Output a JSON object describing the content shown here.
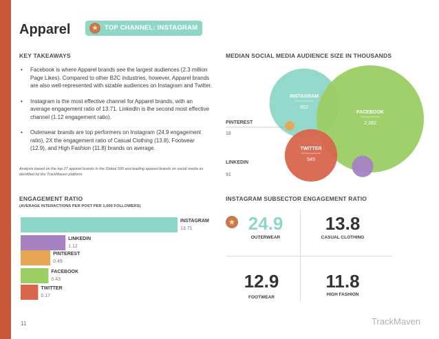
{
  "page": {
    "title": "Apparel",
    "badge": "TOP CHANNEL: INSTAGRAM",
    "page_number": "11",
    "brand": "TrackMaven"
  },
  "colors": {
    "sidebar": "#c8573a",
    "instagram": "#8ed6c8",
    "facebook": "#9bcd63",
    "twitter": "#d8654c",
    "pinterest": "#e8a553",
    "linkedin": "#a782c3"
  },
  "key_takeaways": {
    "heading": "KEY TAKEAWAYS",
    "bullets": [
      "Facebook is where Apparel brands see the largest audiences (2.3 million Page Likes). Compared to other B2C industries, however, Apparel brands are also well-represented with sizable audiences on Instagram and Twitter.",
      "Instagram is the most effective channel for Apparel brands, with an average engagement ratio of 13.71. LinkedIn is the second most effective channel (1.12 engagement ratio).",
      "Outerwear brands are top performers on Instagram (24.9 engagement ratio), 2X the engagement ratio of Casual Clothing (13.8), Footwear (12.9), and High Fashion (11.8) brands on average."
    ],
    "footnote": "Analysis based on the top 27 apparel brands in the Global 500 and leading apparel brands on social media as identified by the TrackMaven platform."
  },
  "audience": {
    "heading": "MEDIAN SOCIAL MEDIA AUDIENCE SIZE IN THOUSANDS"
  },
  "engagement": {
    "heading": "ENGAGEMENT RATIO",
    "subheading": "(AVERAGE INTERACTIONS PER POST PER 1,000 FOLLOWERS)"
  },
  "subsector": {
    "heading": "INSTAGRAM SUBSECTOR ENGAGEMENT RATIO",
    "tiles": [
      {
        "value": "24.9",
        "label": "OUTERWEAR"
      },
      {
        "value": "13.8",
        "label": "CASUAL CLOTHING"
      },
      {
        "value": "12.9",
        "label": "FOOTWEAR"
      },
      {
        "value": "11.8",
        "label": "HIGH FASHION"
      }
    ]
  },
  "chart_data": [
    {
      "type": "bubble",
      "title": "MEDIAN SOCIAL MEDIA AUDIENCE SIZE IN THOUSANDS",
      "series": [
        {
          "name": "INSTAGRAM",
          "value": 952,
          "label": "952",
          "color": "#8ed6c8"
        },
        {
          "name": "FACEBOOK",
          "value": 2282,
          "label": "2,282",
          "color": "#9bcd63"
        },
        {
          "name": "TWITTER",
          "value": 545,
          "label": "545",
          "color": "#d8654c"
        },
        {
          "name": "PINTEREST",
          "value": 18,
          "label": "18",
          "color": "#e8a553"
        },
        {
          "name": "LINKEDIN",
          "value": 91,
          "label": "91",
          "color": "#a782c3"
        }
      ]
    },
    {
      "type": "bar",
      "title": "ENGAGEMENT RATIO",
      "subtitle": "(AVERAGE INTERACTIONS PER POST PER 1,000 FOLLOWERS)",
      "series": [
        {
          "name": "INSTAGRAM",
          "value": 13.71,
          "label": "13.71",
          "color": "#8ed6c8"
        },
        {
          "name": "LINKEDIN",
          "value": 1.12,
          "label": "1.12",
          "color": "#a782c3"
        },
        {
          "name": "PINTEREST",
          "value": 0.49,
          "label": "0.49",
          "color": "#e8a553"
        },
        {
          "name": "FACEBOOK",
          "value": 0.43,
          "label": "0.43",
          "color": "#9bcd63"
        },
        {
          "name": "TWITTER",
          "value": 0.17,
          "label": "0.17",
          "color": "#d8654c"
        }
      ]
    }
  ]
}
